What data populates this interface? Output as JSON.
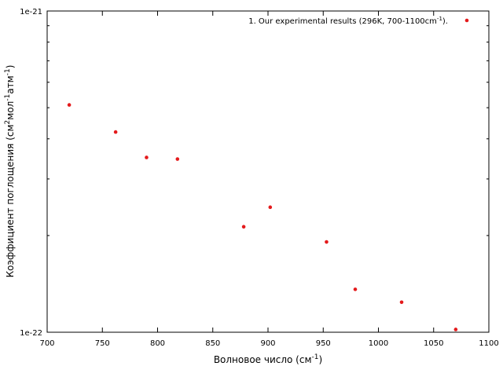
{
  "chart_data": {
    "type": "scatter",
    "xlabel_main": "Волновое число (см",
    "xlabel_sup": "-1",
    "xlabel_end": ")",
    "ylabel_parts": {
      "a": "Коэффициент поглощения (см",
      "b": "2",
      "c": "мол",
      "d": "-1",
      "e": "атм",
      "f": "-1",
      "g": ")"
    },
    "xlim": [
      700,
      1100
    ],
    "ylim": [
      1e-22,
      1e-21
    ],
    "yscale": "log",
    "x_ticks": [
      700,
      750,
      800,
      850,
      900,
      950,
      1000,
      1050,
      1100
    ],
    "y_ticks": [
      {
        "value": 1e-21,
        "label": "1e-21"
      },
      {
        "value": 1e-22,
        "label": "1e-22"
      }
    ],
    "grid": false,
    "legend_position": "top-right",
    "colors": {
      "series": "#e41a1c",
      "axes": "#000000"
    },
    "series": [
      {
        "name": "1. Our experimental results (296K, 700-1100cm-1).",
        "legend_parts": {
          "before": "1. Our experimental results (296K, 700-1100cm",
          "sup": "-1",
          "after": ")."
        },
        "points": [
          [
            720,
            5.1e-22
          ],
          [
            762,
            4.2e-22
          ],
          [
            790,
            3.5e-22
          ],
          [
            818,
            3.46e-22
          ],
          [
            878,
            2.13e-22
          ],
          [
            902,
            2.45e-22
          ],
          [
            953,
            1.91e-22
          ],
          [
            979,
            1.36e-22
          ],
          [
            1021,
            1.24e-22
          ],
          [
            1070,
            1.02e-22
          ]
        ]
      }
    ]
  }
}
